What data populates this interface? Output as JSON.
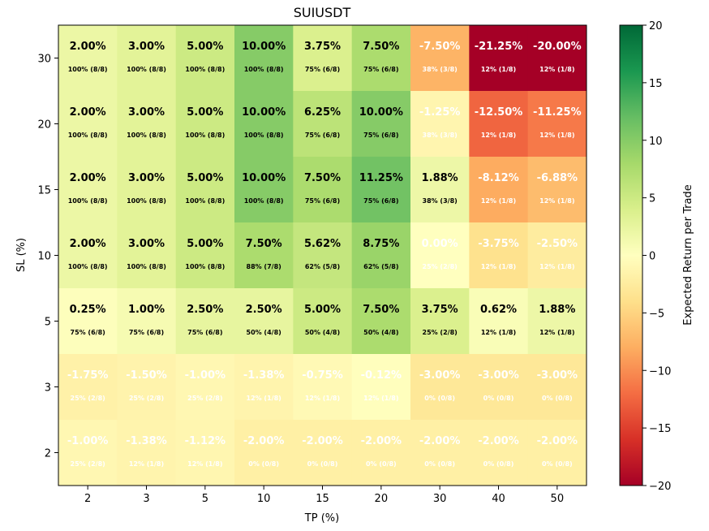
{
  "chart_data": {
    "type": "heatmap",
    "title": "SUIUSDT",
    "xlabel": "TP (%)",
    "ylabel": "SL (%)",
    "x_categories": [
      "2",
      "3",
      "5",
      "10",
      "15",
      "20",
      "30",
      "40",
      "50"
    ],
    "y_categories": [
      "30",
      "20",
      "15",
      "10",
      "5",
      "3",
      "2"
    ],
    "values": [
      [
        2.0,
        3.0,
        5.0,
        10.0,
        3.75,
        7.5,
        -7.5,
        -21.25,
        -20.0
      ],
      [
        2.0,
        3.0,
        5.0,
        10.0,
        6.25,
        10.0,
        -1.25,
        -12.5,
        -11.25
      ],
      [
        2.0,
        3.0,
        5.0,
        10.0,
        7.5,
        11.25,
        1.88,
        -8.12,
        -6.88
      ],
      [
        2.0,
        3.0,
        5.0,
        7.5,
        5.62,
        8.75,
        0.0,
        -3.75,
        -2.5
      ],
      [
        0.25,
        1.0,
        2.5,
        2.5,
        5.0,
        7.5,
        3.75,
        0.62,
        1.88
      ],
      [
        -1.75,
        -1.5,
        -1.0,
        -1.38,
        -0.75,
        -0.12,
        -3.0,
        -3.0,
        -3.0
      ],
      [
        -1.0,
        -1.38,
        -1.12,
        -2.0,
        -2.0,
        -2.0,
        -2.0,
        -2.0,
        -2.0
      ]
    ],
    "value_labels": [
      [
        "2.00%",
        "3.00%",
        "5.00%",
        "10.00%",
        "3.75%",
        "7.50%",
        "-7.50%",
        "-21.25%",
        "-20.00%"
      ],
      [
        "2.00%",
        "3.00%",
        "5.00%",
        "10.00%",
        "6.25%",
        "10.00%",
        "-1.25%",
        "-12.50%",
        "-11.25%"
      ],
      [
        "2.00%",
        "3.00%",
        "5.00%",
        "10.00%",
        "7.50%",
        "11.25%",
        "1.88%",
        "-8.12%",
        "-6.88%"
      ],
      [
        "2.00%",
        "3.00%",
        "5.00%",
        "7.50%",
        "5.62%",
        "8.75%",
        "0.00%",
        "-3.75%",
        "-2.50%"
      ],
      [
        "0.25%",
        "1.00%",
        "2.50%",
        "2.50%",
        "5.00%",
        "7.50%",
        "3.75%",
        "0.62%",
        "1.88%"
      ],
      [
        "-1.75%",
        "-1.50%",
        "-1.00%",
        "-1.38%",
        "-0.75%",
        "-0.12%",
        "-3.00%",
        "-3.00%",
        "-3.00%"
      ],
      [
        "-1.00%",
        "-1.38%",
        "-1.12%",
        "-2.00%",
        "-2.00%",
        "-2.00%",
        "-2.00%",
        "-2.00%",
        "-2.00%"
      ]
    ],
    "win_labels": [
      [
        "100% (8/8)",
        "100% (8/8)",
        "100% (8/8)",
        "100% (8/8)",
        "75% (6/8)",
        "75% (6/8)",
        "38% (3/8)",
        "12% (1/8)",
        "12% (1/8)"
      ],
      [
        "100% (8/8)",
        "100% (8/8)",
        "100% (8/8)",
        "100% (8/8)",
        "75% (6/8)",
        "75% (6/8)",
        "38% (3/8)",
        "12% (1/8)",
        "12% (1/8)"
      ],
      [
        "100% (8/8)",
        "100% (8/8)",
        "100% (8/8)",
        "100% (8/8)",
        "75% (6/8)",
        "75% (6/8)",
        "38% (3/8)",
        "12% (1/8)",
        "12% (1/8)"
      ],
      [
        "100% (8/8)",
        "100% (8/8)",
        "100% (8/8)",
        "88% (7/8)",
        "62% (5/8)",
        "62% (5/8)",
        "25% (2/8)",
        "12% (1/8)",
        "12% (1/8)"
      ],
      [
        "75% (6/8)",
        "75% (6/8)",
        "75% (6/8)",
        "50% (4/8)",
        "50% (4/8)",
        "50% (4/8)",
        "25% (2/8)",
        "12% (1/8)",
        "12% (1/8)"
      ],
      [
        "25% (2/8)",
        "25% (2/8)",
        "25% (2/8)",
        "12% (1/8)",
        "12% (1/8)",
        "12% (1/8)",
        "0% (0/8)",
        "0% (0/8)",
        "0% (0/8)"
      ],
      [
        "25% (2/8)",
        "12% (1/8)",
        "12% (1/8)",
        "0% (0/8)",
        "0% (0/8)",
        "0% (0/8)",
        "0% (0/8)",
        "0% (0/8)",
        "0% (0/8)"
      ]
    ],
    "label_color": [
      [
        "dark",
        "dark",
        "dark",
        "dark",
        "dark",
        "dark",
        "light",
        "light",
        "light"
      ],
      [
        "dark",
        "dark",
        "dark",
        "dark",
        "dark",
        "dark",
        "light",
        "light",
        "light"
      ],
      [
        "dark",
        "dark",
        "dark",
        "dark",
        "dark",
        "dark",
        "dark",
        "light",
        "light"
      ],
      [
        "dark",
        "dark",
        "dark",
        "dark",
        "dark",
        "dark",
        "light",
        "light",
        "light"
      ],
      [
        "dark",
        "dark",
        "dark",
        "dark",
        "dark",
        "dark",
        "dark",
        "dark",
        "dark"
      ],
      [
        "light",
        "light",
        "light",
        "light",
        "light",
        "light",
        "light",
        "light",
        "light"
      ],
      [
        "light",
        "light",
        "light",
        "light",
        "light",
        "light",
        "light",
        "light",
        "light"
      ]
    ],
    "colorbar": {
      "label": "Expected Return per Trade",
      "min": -20,
      "max": 20,
      "ticks": [
        20,
        15,
        10,
        5,
        0,
        -5,
        -10,
        -15,
        -20
      ],
      "tick_labels": [
        "20",
        "15",
        "10",
        "5",
        "0",
        "−5",
        "−10",
        "−15",
        "−20"
      ],
      "colormap": "RdYlGn"
    },
    "grid": false
  }
}
